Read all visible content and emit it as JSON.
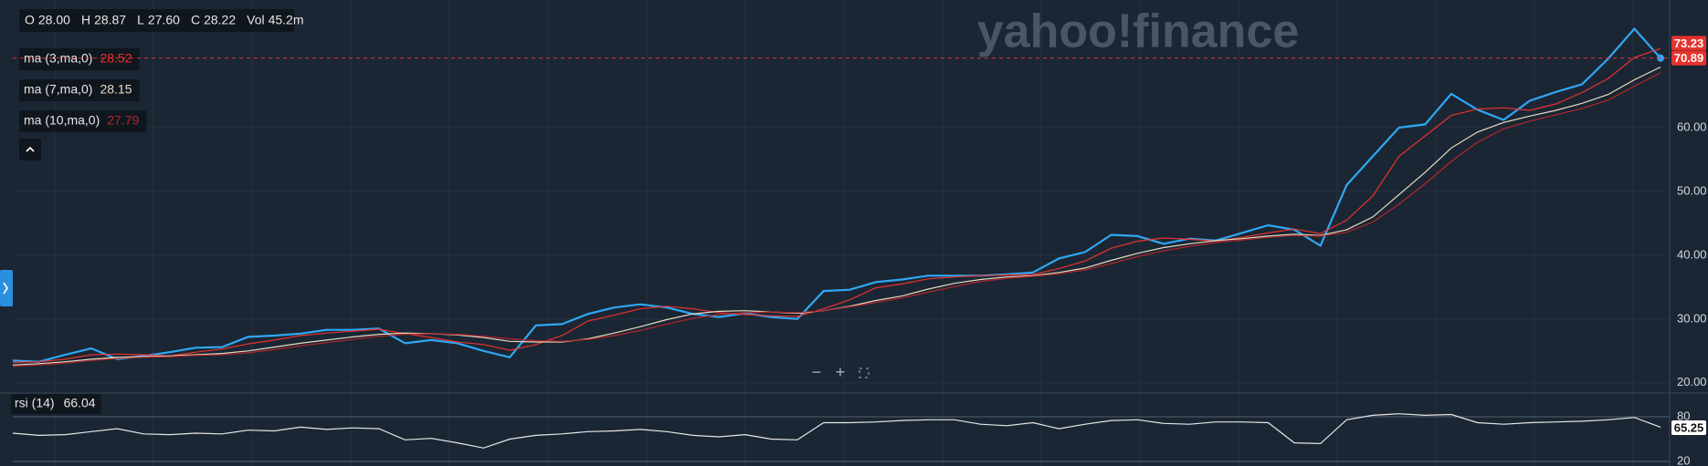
{
  "header": {
    "ohlc": [
      {
        "label": "O",
        "value": "28.00"
      },
      {
        "label": "H",
        "value": "28.87"
      },
      {
        "label": "L",
        "value": "27.60"
      },
      {
        "label": "C",
        "value": "28.22"
      },
      {
        "label": "Vol",
        "value": "45.2m"
      }
    ],
    "watermark": "yahoo!finance"
  },
  "chart_data": [
    {
      "type": "line",
      "ylim": [
        18.4,
        80
      ],
      "yticks": [
        {
          "value": 20,
          "label": "20.00"
        },
        {
          "value": 30,
          "label": "30.00"
        },
        {
          "value": 40,
          "label": "40.00"
        },
        {
          "value": 50,
          "label": "50.00"
        },
        {
          "value": 60,
          "label": "60.00"
        }
      ],
      "series": [
        {
          "color": "#2fa8f5",
          "values": [
            23.5,
            23.3,
            24.4,
            25.4,
            23.7,
            24.2,
            24.8,
            25.5,
            25.6,
            27.2,
            27.4,
            27.7,
            28.3,
            28.3,
            28.5,
            26.2,
            26.7,
            26.2,
            25.0,
            24.0,
            29.0,
            29.2,
            30.8,
            31.8,
            32.3,
            31.8,
            30.8,
            30.3,
            30.9,
            30.3,
            30.0,
            34.4,
            34.6,
            35.8,
            36.2,
            36.8,
            36.8,
            36.8,
            37.0,
            37.3,
            39.5,
            40.5,
            43.2,
            43.0,
            41.8,
            42.6,
            42.3,
            43.5,
            44.7,
            44.0,
            41.5,
            51.0,
            55.5,
            60.0,
            60.5,
            65.3,
            62.8,
            61.2,
            64.2,
            65.6,
            66.8,
            70.8,
            75.5,
            70.9
          ]
        },
        {
          "name": "ma (3,ma,0)",
          "legend_value": 28.52,
          "color": "#e8322d",
          "values": [
            23.2,
            23.3,
            23.7,
            24.4,
            24.5,
            24.4,
            24.2,
            24.8,
            25.3,
            26.1,
            26.7,
            27.4,
            27.8,
            28.1,
            28.4,
            27.7,
            27.1,
            26.4,
            26.0,
            25.1,
            26.0,
            27.4,
            29.7,
            30.6,
            31.6,
            32.0,
            31.6,
            31.0,
            30.7,
            30.5,
            30.4,
            31.6,
            33.0,
            34.9,
            35.5,
            36.3,
            36.6,
            36.8,
            36.9,
            37.0,
            37.9,
            39.1,
            41.1,
            42.2,
            42.7,
            42.5,
            42.2,
            42.8,
            43.5,
            44.1,
            43.4,
            45.5,
            49.3,
            55.5,
            58.7,
            61.9,
            62.9,
            63.1,
            62.7,
            63.7,
            65.5,
            67.7,
            71.0,
            72.4
          ]
        },
        {
          "name": "ma (7,ma,0)",
          "legend_value": 28.15,
          "color": "#e8dcc0",
          "values": [
            22.8,
            23.0,
            23.3,
            23.7,
            24.0,
            24.1,
            24.2,
            24.4,
            24.6,
            25.0,
            25.6,
            26.2,
            26.7,
            27.2,
            27.6,
            27.8,
            27.7,
            27.5,
            27.1,
            26.5,
            26.4,
            26.4,
            26.9,
            27.8,
            28.8,
            29.9,
            30.8,
            31.2,
            31.3,
            31.1,
            30.9,
            31.3,
            32.0,
            32.9,
            33.6,
            34.7,
            35.6,
            36.2,
            36.6,
            36.8,
            37.3,
            38.0,
            39.2,
            40.3,
            41.2,
            41.8,
            42.3,
            42.6,
            43.0,
            43.3,
            43.1,
            44.0,
            46.0,
            49.5,
            53.0,
            56.8,
            59.3,
            60.8,
            61.8,
            62.7,
            63.8,
            65.2,
            67.5,
            69.5
          ]
        },
        {
          "name": "ma (10,ma,0)",
          "legend_value": 27.79,
          "color": "#b3262b",
          "values": [
            22.6,
            22.8,
            23.1,
            23.5,
            23.8,
            24.0,
            24.1,
            24.3,
            24.4,
            24.7,
            25.2,
            25.8,
            26.3,
            26.8,
            27.3,
            27.6,
            27.7,
            27.6,
            27.3,
            26.9,
            26.6,
            26.5,
            26.8,
            27.4,
            28.2,
            29.2,
            30.1,
            30.7,
            31.0,
            31.1,
            31.0,
            31.3,
            31.9,
            32.6,
            33.3,
            34.2,
            35.1,
            35.9,
            36.4,
            36.7,
            37.1,
            37.7,
            38.7,
            39.8,
            40.7,
            41.4,
            42.0,
            42.4,
            42.8,
            43.1,
            43.0,
            43.6,
            45.2,
            48.0,
            51.2,
            54.7,
            57.7,
            59.8,
            61.0,
            62.0,
            63.0,
            64.3,
            66.5,
            68.6
          ]
        }
      ],
      "tags": [
        {
          "value": 73.23,
          "color": "#e8322d"
        },
        {
          "value": 70.89,
          "color": "#e8322d",
          "dashed": true
        }
      ]
    },
    {
      "type": "line",
      "title": "rsi (14)",
      "legend_value": 66.04,
      "ylim": [
        13.9,
        111.8
      ],
      "yticks": [
        20,
        80
      ],
      "series": [
        {
          "color": "#e6e6e6",
          "values": [
            58,
            55,
            56,
            60,
            64,
            57,
            56,
            58,
            57,
            62,
            61,
            66,
            63,
            65,
            64,
            49,
            51,
            45,
            38,
            50,
            55,
            57,
            60,
            61,
            63,
            60,
            55,
            53,
            56,
            50,
            49,
            72,
            72,
            73,
            75,
            76,
            76,
            70,
            68,
            72,
            64,
            70,
            75,
            76,
            71,
            70,
            73,
            73,
            72,
            45,
            44,
            76,
            82,
            84,
            82,
            83,
            72,
            70,
            72,
            73,
            74,
            76,
            79,
            66
          ]
        }
      ],
      "tags": [
        {
          "value": 65.25,
          "color": "#ffffff"
        }
      ]
    }
  ]
}
